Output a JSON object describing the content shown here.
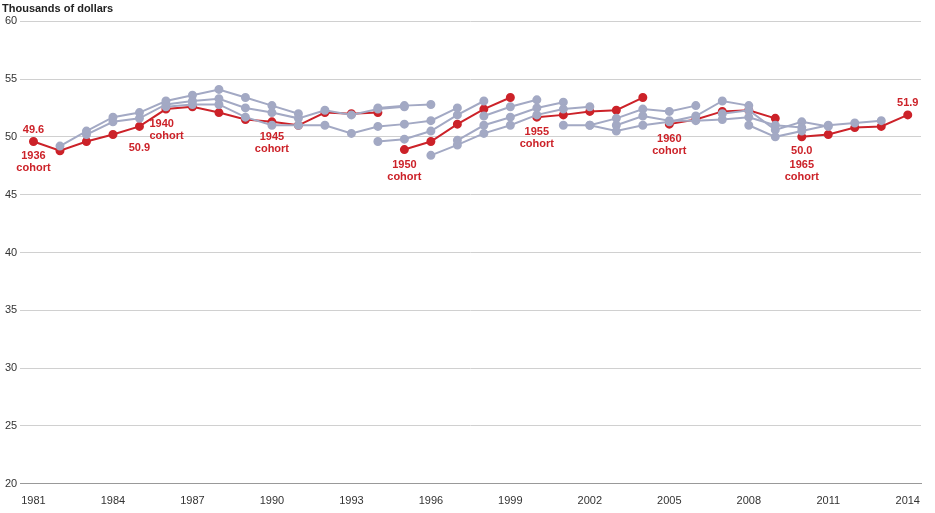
{
  "chart_data": {
    "type": "line",
    "ylabel": "Thousands of dollars",
    "x": [
      1981,
      1982,
      1983,
      1984,
      1985,
      1986,
      1987,
      1988,
      1989,
      1990,
      1991,
      1992,
      1993,
      1994,
      1995,
      1996,
      1997,
      1998,
      1999,
      2000,
      2001,
      2002,
      2003,
      2004,
      2005,
      2006,
      2007,
      2008,
      2009,
      2010,
      2011,
      2012,
      2013,
      2014
    ],
    "xlim": [
      1980.5,
      2014.5
    ],
    "xticks": [
      1981,
      1984,
      1987,
      1990,
      1993,
      1996,
      1999,
      2002,
      2005,
      2008,
      2011,
      2014
    ],
    "ylim": [
      20,
      60
    ],
    "yticks": [
      20,
      25,
      30,
      35,
      40,
      45,
      50,
      55,
      60
    ],
    "grid": true,
    "marker": "circle",
    "series": [
      {
        "color": "#a3a9c4",
        "values": [
          null,
          49.2,
          50.5,
          51.7,
          52.1,
          53.1,
          53.6,
          54.1,
          53.4,
          52.7,
          52.0,
          null,
          null,
          null,
          null,
          null,
          null,
          null,
          null,
          null,
          null,
          null,
          null,
          null,
          null,
          null,
          null,
          null,
          null,
          null,
          null,
          null,
          null,
          null
        ]
      },
      {
        "color": "#a3a9c4",
        "values": [
          null,
          null,
          50.2,
          51.3,
          51.6,
          52.8,
          53.1,
          53.3,
          52.5,
          52.1,
          51.6,
          52.3,
          51.9,
          52.4,
          52.6,
          null,
          null,
          null,
          null,
          null,
          null,
          null,
          null,
          null,
          null,
          null,
          null,
          null,
          null,
          null,
          null,
          null,
          null,
          null
        ]
      },
      {
        "color": "#a3a9c4",
        "values": [
          null,
          null,
          null,
          null,
          null,
          52.6,
          52.8,
          52.8,
          51.7,
          51.0,
          51.0,
          51.0,
          50.3,
          50.9,
          51.1,
          51.4,
          52.5,
          null,
          null,
          null,
          null,
          null,
          null,
          null,
          null,
          null,
          null,
          null,
          null,
          null,
          null,
          null,
          null,
          null
        ]
      },
      {
        "color": "#a3a9c4",
        "values": [
          null,
          null,
          null,
          null,
          null,
          null,
          null,
          null,
          null,
          null,
          null,
          null,
          null,
          49.6,
          49.8,
          50.5,
          51.9,
          53.1,
          null,
          null,
          null,
          null,
          null,
          null,
          null,
          null,
          null,
          null,
          null,
          null,
          null,
          null,
          null,
          null
        ]
      },
      {
        "color": "#a3a9c4",
        "values": [
          null,
          null,
          null,
          null,
          null,
          null,
          null,
          null,
          null,
          null,
          null,
          null,
          null,
          52.5,
          52.7,
          52.8,
          null,
          null,
          null,
          null,
          null,
          null,
          null,
          null,
          null,
          null,
          null,
          null,
          null,
          null,
          null,
          null,
          null,
          null
        ]
      },
      {
        "color": "#a3a9c4",
        "values": [
          null,
          null,
          null,
          null,
          null,
          null,
          null,
          null,
          null,
          null,
          null,
          null,
          null,
          null,
          null,
          48.4,
          49.3,
          50.3,
          51.0,
          51.9,
          52.4,
          52.6,
          null,
          null,
          null,
          null,
          null,
          null,
          null,
          null,
          null,
          null,
          null,
          null
        ]
      },
      {
        "color": "#a3a9c4",
        "values": [
          null,
          null,
          null,
          null,
          null,
          null,
          null,
          null,
          null,
          null,
          null,
          null,
          null,
          null,
          null,
          null,
          49.7,
          51.0,
          51.7,
          52.5,
          53.0,
          null,
          null,
          null,
          null,
          null,
          null,
          null,
          null,
          null,
          null,
          null,
          null,
          null
        ]
      },
      {
        "color": "#a3a9c4",
        "values": [
          null,
          null,
          null,
          null,
          null,
          null,
          null,
          null,
          null,
          null,
          null,
          null,
          null,
          null,
          null,
          null,
          null,
          51.8,
          52.6,
          53.2,
          null,
          null,
          null,
          null,
          null,
          null,
          null,
          null,
          null,
          null,
          null,
          null,
          null,
          null
        ]
      },
      {
        "color": "#a3a9c4",
        "values": [
          null,
          null,
          null,
          null,
          null,
          null,
          null,
          null,
          null,
          null,
          null,
          null,
          null,
          null,
          null,
          null,
          null,
          null,
          null,
          null,
          51.0,
          51.0,
          50.5,
          51.0,
          51.3,
          51.8,
          53.1,
          52.7,
          null,
          null,
          null,
          null,
          null,
          null
        ]
      },
      {
        "color": "#a3a9c4",
        "values": [
          null,
          null,
          null,
          null,
          null,
          null,
          null,
          null,
          null,
          null,
          null,
          null,
          null,
          null,
          null,
          null,
          null,
          null,
          null,
          null,
          null,
          51.0,
          51.6,
          52.4,
          52.2,
          52.7,
          null,
          null,
          null,
          null,
          null,
          null,
          null,
          null
        ]
      },
      {
        "color": "#a3a9c4",
        "values": [
          null,
          null,
          null,
          null,
          null,
          null,
          null,
          null,
          null,
          null,
          null,
          null,
          null,
          null,
          null,
          null,
          null,
          null,
          null,
          null,
          null,
          null,
          51.0,
          51.8,
          51.4,
          51.4,
          51.5,
          51.7,
          51.0,
          50.8,
          null,
          null,
          null,
          null
        ]
      },
      {
        "color": "#a3a9c4",
        "values": [
          null,
          null,
          null,
          null,
          null,
          null,
          null,
          null,
          null,
          null,
          null,
          null,
          null,
          null,
          null,
          null,
          null,
          null,
          null,
          null,
          null,
          null,
          null,
          null,
          null,
          null,
          null,
          51.0,
          50.0,
          50.5,
          51.0,
          51.2,
          51.4,
          null
        ]
      },
      {
        "color": "#a3a9c4",
        "values": [
          null,
          null,
          null,
          null,
          null,
          null,
          null,
          null,
          null,
          null,
          null,
          null,
          null,
          null,
          null,
          null,
          null,
          null,
          null,
          null,
          null,
          null,
          null,
          null,
          null,
          null,
          52.0,
          52.3,
          50.6,
          51.3,
          50.9,
          null,
          null,
          null
        ]
      },
      {
        "color": "#cc2229",
        "values": [
          49.6,
          48.8,
          49.6,
          50.2,
          50.9,
          52.4,
          52.6,
          52.1,
          51.5,
          51.3,
          51.0,
          52.1,
          52.0,
          52.1,
          null,
          null,
          null,
          null,
          null,
          null,
          null,
          null,
          null,
          null,
          null,
          null,
          null,
          null,
          null,
          null,
          null,
          null,
          null,
          null
        ]
      },
      {
        "color": "#cc2229",
        "values": [
          null,
          null,
          null,
          null,
          null,
          null,
          null,
          null,
          null,
          null,
          null,
          null,
          null,
          null,
          48.9,
          49.6,
          51.1,
          52.4,
          53.4,
          null,
          null,
          null,
          null,
          null,
          null,
          null,
          null,
          null,
          null,
          null,
          null,
          null,
          null,
          null
        ]
      },
      {
        "color": "#cc2229",
        "values": [
          null,
          null,
          null,
          null,
          null,
          null,
          null,
          null,
          null,
          null,
          null,
          null,
          null,
          null,
          null,
          null,
          null,
          null,
          null,
          51.7,
          51.9,
          52.2,
          52.3,
          53.4,
          null,
          null,
          null,
          null,
          null,
          null,
          null,
          null,
          null,
          null
        ]
      },
      {
        "color": "#cc2229",
        "values": [
          null,
          null,
          null,
          null,
          null,
          null,
          null,
          null,
          null,
          null,
          null,
          null,
          null,
          null,
          null,
          null,
          null,
          null,
          null,
          null,
          null,
          null,
          null,
          null,
          51.1,
          51.5,
          52.2,
          52.3,
          51.6,
          null,
          null,
          null,
          null,
          null
        ]
      },
      {
        "color": "#cc2229",
        "values": [
          null,
          null,
          null,
          null,
          null,
          null,
          null,
          null,
          null,
          null,
          null,
          null,
          null,
          null,
          null,
          null,
          null,
          null,
          null,
          null,
          null,
          null,
          null,
          null,
          null,
          null,
          null,
          null,
          null,
          50.0,
          50.2,
          50.8,
          50.9,
          51.9
        ]
      }
    ],
    "annotations": [
      {
        "text": "49.6",
        "x": 1981,
        "y": 49.6,
        "color": "#cc2229"
      },
      {
        "text": "1936 cohort",
        "x": 1981,
        "y": 49.6,
        "color": "#cc2229"
      },
      {
        "text": "50.9",
        "x": 1985,
        "y": 50.9,
        "color": "#cc2229"
      },
      {
        "text": "1940 cohort",
        "x": 1985,
        "y": 50.9,
        "color": "#cc2229"
      },
      {
        "text": "1945 cohort",
        "x": 1990,
        "y": 51.3,
        "color": "#cc2229"
      },
      {
        "text": "1950 cohort",
        "x": 1995,
        "y": 48.9,
        "color": "#cc2229"
      },
      {
        "text": "1955 cohort",
        "x": 2000,
        "y": 51.7,
        "color": "#cc2229"
      },
      {
        "text": "1960 cohort",
        "x": 2005,
        "y": 51.1,
        "color": "#cc2229"
      },
      {
        "text": "50.0",
        "x": 2010,
        "y": 50.0,
        "color": "#cc2229"
      },
      {
        "text": "1965 cohort",
        "x": 2010,
        "y": 50.0,
        "color": "#cc2229"
      },
      {
        "text": "51.9",
        "x": 2014,
        "y": 51.9,
        "color": "#cc2229"
      }
    ]
  }
}
